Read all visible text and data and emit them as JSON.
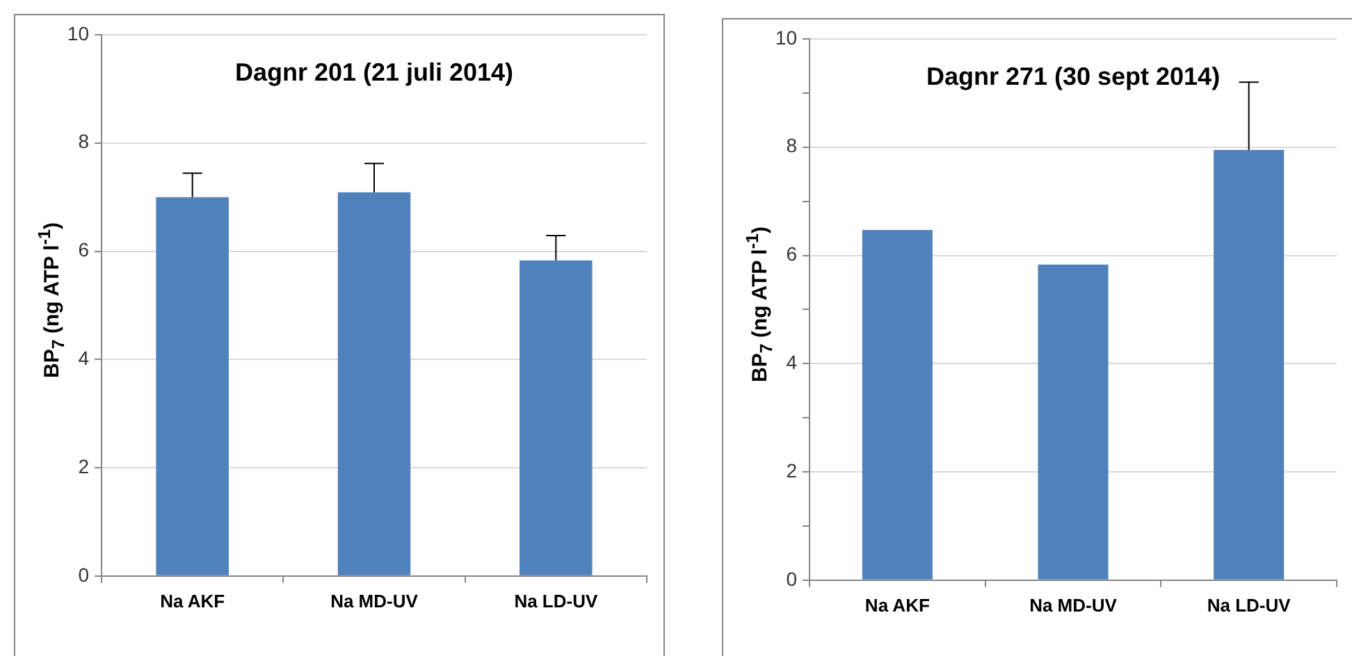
{
  "chart_data": [
    {
      "type": "bar",
      "title": "Dagnr 201 (21 juli 2014)",
      "ylabel": "BP$_{7}$ (ng ATP l$^{-1}$)",
      "categories": [
        "Na AKF",
        "Na MD-UV",
        "Na LD-UV"
      ],
      "values": [
        7.0,
        7.09,
        5.83
      ],
      "errors": [
        [
          7.0,
          7.44
        ],
        [
          7.09,
          7.62
        ],
        [
          5.83,
          6.29
        ]
      ],
      "color": "#4f81bd",
      "ylim": [
        0,
        10
      ],
      "yticks": [
        0,
        2,
        4,
        6,
        8,
        10
      ],
      "grid": "y"
    },
    {
      "type": "bar",
      "title": "Dagnr 271 (30 sept 2014)",
      "ylabel": "BP$_{7}$ (ng ATP l$^{-1}$)",
      "categories": [
        "Na AKF",
        "Na MD-UV",
        "Na LD-UV"
      ],
      "values": [
        6.47,
        5.83,
        7.95
      ],
      "errors": [
        null,
        null,
        [
          7.95,
          9.2
        ]
      ],
      "color": "#4f81bd",
      "ylim": [
        0,
        10
      ],
      "yticks": [
        0,
        {
          "value": 1,
          "label": null
        },
        2,
        {
          "value": 3,
          "label": null
        },
        4,
        {
          "value": 5,
          "label": null
        },
        6,
        {
          "value": 7,
          "label": null
        },
        8,
        {
          "value": 9,
          "label": null
        },
        10
      ],
      "grid": "y"
    }
  ]
}
